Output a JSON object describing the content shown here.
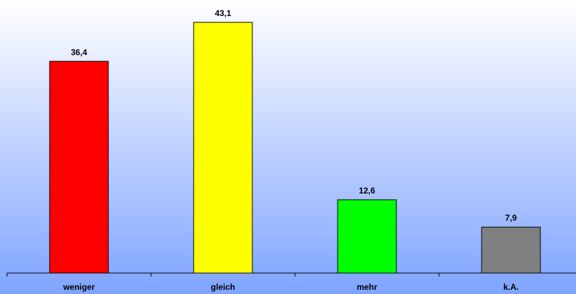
{
  "chart_data": {
    "type": "bar",
    "categories": [
      "weniger",
      "gleich",
      "mehr",
      "k.A."
    ],
    "values": [
      36.4,
      43.1,
      12.6,
      7.9
    ],
    "value_labels": [
      "36,4",
      "43,1",
      "12,6",
      "7,9"
    ],
    "colors": [
      "#FF0000",
      "#FFFF00",
      "#00FF00",
      "#808080"
    ],
    "ylim": [
      0,
      50
    ],
    "grid": false,
    "legend": "none",
    "background": "gradient white-to-blue"
  }
}
